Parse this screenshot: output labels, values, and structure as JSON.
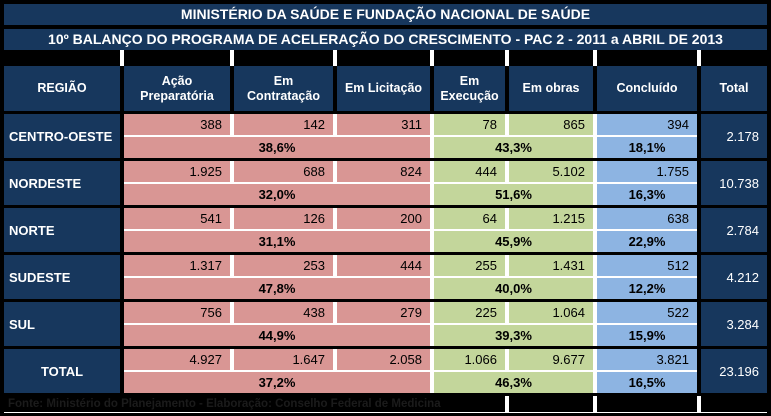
{
  "header": {
    "title_line1": "MINISTÉRIO DA SAÚDE E FUNDAÇÃO NACIONAL DE SAÚDE",
    "title_line2": "10º BALANÇO DO PROGRAMA DE ACELERAÇÃO DO CRESCIMENTO - PAC 2 - 2011 a ABRIL DE 2013"
  },
  "chart_data": {
    "type": "table",
    "title": "10º BALANÇO DO PROGRAMA DE ACELERAÇÃO DO CRESCIMENTO - PAC 2 - 2011 a ABRIL DE 2013",
    "subtitle": "MINISTÉRIO DA SAÚDE E FUNDAÇÃO NACIONAL DE SAÚDE",
    "columns": [
      "REGIÃO",
      "Ação Preparatória",
      "Em Contratação",
      "Em Licitação",
      "Em Execução",
      "Em obras",
      "Concluído",
      "Total"
    ],
    "percent_row_spans": [
      {
        "key": "pct_preparacao",
        "spans_columns": [
          "Ação Preparatória",
          "Em Contratação",
          "Em Licitação"
        ],
        "color": "#D99694"
      },
      {
        "key": "pct_obras",
        "spans_columns": [
          "Em Execução",
          "Em obras"
        ],
        "color": "#C3D69B"
      },
      {
        "key": "pct_concluido",
        "spans_columns": [
          "Concluído"
        ],
        "color": "#8DB4E2"
      }
    ],
    "rows": [
      {
        "region": "CENTRO-OESTE",
        "acao_preparatoria": "388",
        "em_contratacao": "142",
        "em_licitacao": "311",
        "em_execucao": "78",
        "em_obras": "865",
        "concluido": "394",
        "total": "2.178",
        "pct_preparacao": "38,6%",
        "pct_obras": "43,3%",
        "pct_concluido": "18,1%"
      },
      {
        "region": "NORDESTE",
        "acao_preparatoria": "1.925",
        "em_contratacao": "688",
        "em_licitacao": "824",
        "em_execucao": "444",
        "em_obras": "5.102",
        "concluido": "1.755",
        "total": "10.738",
        "pct_preparacao": "32,0%",
        "pct_obras": "51,6%",
        "pct_concluido": "16,3%"
      },
      {
        "region": "NORTE",
        "acao_preparatoria": "541",
        "em_contratacao": "126",
        "em_licitacao": "200",
        "em_execucao": "64",
        "em_obras": "1.215",
        "concluido": "638",
        "total": "2.784",
        "pct_preparacao": "31,1%",
        "pct_obras": "45,9%",
        "pct_concluido": "22,9%"
      },
      {
        "region": "SUDESTE",
        "acao_preparatoria": "1.317",
        "em_contratacao": "253",
        "em_licitacao": "444",
        "em_execucao": "255",
        "em_obras": "1.431",
        "concluido": "512",
        "total": "4.212",
        "pct_preparacao": "47,8%",
        "pct_obras": "40,0%",
        "pct_concluido": "12,2%"
      },
      {
        "region": "SUL",
        "acao_preparatoria": "756",
        "em_contratacao": "438",
        "em_licitacao": "279",
        "em_execucao": "225",
        "em_obras": "1.064",
        "concluido": "522",
        "total": "3.284",
        "pct_preparacao": "44,9%",
        "pct_obras": "39,3%",
        "pct_concluido": "15,9%"
      },
      {
        "region": "TOTAL",
        "acao_preparatoria": "4.927",
        "em_contratacao": "1.647",
        "em_licitacao": "2.058",
        "em_execucao": "1.066",
        "em_obras": "9.677",
        "concluido": "3.821",
        "total": "23.196",
        "pct_preparacao": "37,2%",
        "pct_obras": "46,3%",
        "pct_concluido": "16,5%"
      }
    ]
  },
  "footer": {
    "source_note": "Fonte: Ministério do Planejamento - Elaboração: Conselho Federal de Medicina"
  },
  "colors": {
    "navy": "#17375D",
    "pink": "#D99694",
    "green": "#C3D69B",
    "blue": "#8DB4E2",
    "background": "#000000",
    "grid_white": "#FFFFFF"
  }
}
